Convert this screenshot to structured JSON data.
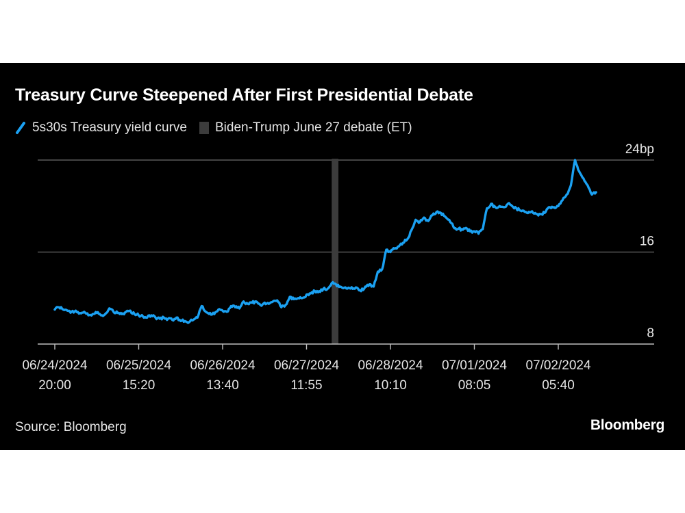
{
  "title": "Treasury Curve Steepened After First Presidential Debate",
  "source": "Source: Bloomberg",
  "brand": "Bloomberg",
  "colors": {
    "background": "#000000",
    "series": "#1ba1f2",
    "debate_band": "#3c3c3c",
    "grid": "#6e6e6e",
    "text": "#e6e6e6"
  },
  "chart_data": {
    "type": "line",
    "title": "Treasury Curve Steepened After First Presidential Debate",
    "xlabel": "",
    "ylabel": "",
    "ylim": [
      8,
      24
    ],
    "yticks": [
      {
        "value": 24,
        "label": "24bp"
      },
      {
        "value": 16,
        "label": "16"
      },
      {
        "value": 8,
        "label": "8"
      }
    ],
    "xlim": [
      -0.1,
      6.55
    ],
    "xticks": [
      {
        "x": 0,
        "label": [
          "06/24/2024",
          "20:00"
        ]
      },
      {
        "x": 1,
        "label": [
          "06/25/2024",
          "15:20"
        ]
      },
      {
        "x": 2,
        "label": [
          "06/26/2024",
          "13:40"
        ]
      },
      {
        "x": 3,
        "label": [
          "06/27/2024",
          "11:55"
        ]
      },
      {
        "x": 4,
        "label": [
          "06/28/2024",
          "10:10"
        ]
      },
      {
        "x": 5,
        "label": [
          "07/01/2024",
          "08:05"
        ]
      },
      {
        "x": 6,
        "label": [
          "07/02/2024",
          "05:40"
        ]
      }
    ],
    "legend": [
      {
        "label": "5s30s Treasury yield curve",
        "kind": "line"
      },
      {
        "label": "Biden-Trump June 27 debate (ET)",
        "kind": "band"
      }
    ],
    "debate_band": {
      "x_start": 3.3,
      "x_end": 3.38,
      "label": "Biden-Trump June 27 debate (ET)"
    },
    "series": [
      {
        "name": "5s30s Treasury yield curve",
        "x": [
          0,
          0.05,
          0.1,
          0.15,
          0.2,
          0.25,
          0.3,
          0.35,
          0.4,
          0.45,
          0.5,
          0.55,
          0.6,
          0.65,
          0.7,
          0.75,
          0.8,
          0.85,
          0.9,
          0.95,
          1,
          1.05,
          1.1,
          1.15,
          1.2,
          1.25,
          1.3,
          1.35,
          1.4,
          1.45,
          1.5,
          1.55,
          1.6,
          1.65,
          1.7,
          1.75,
          1.8,
          1.85,
          1.9,
          1.95,
          2,
          2.05,
          2.1,
          2.15,
          2.2,
          2.25,
          2.3,
          2.35,
          2.4,
          2.45,
          2.5,
          2.55,
          2.6,
          2.65,
          2.7,
          2.75,
          2.8,
          2.85,
          2.9,
          2.95,
          3,
          3.05,
          3.1,
          3.15,
          3.2,
          3.25,
          3.3,
          3.35,
          3.4,
          3.45,
          3.5,
          3.55,
          3.6,
          3.65,
          3.7,
          3.75,
          3.8,
          3.85,
          3.9,
          3.95,
          4,
          4.05,
          4.1,
          4.15,
          4.2,
          4.25,
          4.3,
          4.35,
          4.4,
          4.45,
          4.5,
          4.55,
          4.6,
          4.65,
          4.7,
          4.75,
          4.8,
          4.85,
          4.9,
          4.95,
          5,
          5.05,
          5.1,
          5.15,
          5.2,
          5.25,
          5.3,
          5.35,
          5.4,
          5.45,
          5.5,
          5.55,
          5.6,
          5.65,
          5.7,
          5.75,
          5.8,
          5.85,
          5.9,
          5.95,
          6,
          6.05,
          6.1,
          6.15,
          6.2,
          6.25,
          6.3,
          6.35,
          6.4,
          6.45
        ],
        "values": [
          11.0,
          11.2,
          11.0,
          10.9,
          10.8,
          10.9,
          10.7,
          10.8,
          10.5,
          10.6,
          10.7,
          10.5,
          10.6,
          11.1,
          10.8,
          10.7,
          10.6,
          10.8,
          10.9,
          10.6,
          10.5,
          10.4,
          10.3,
          10.5,
          10.3,
          10.2,
          10.3,
          10.2,
          10.1,
          10.3,
          10.0,
          10.0,
          9.9,
          10.1,
          10.3,
          11.3,
          10.8,
          10.7,
          10.6,
          11.0,
          10.9,
          10.8,
          11.3,
          11.2,
          11.1,
          11.7,
          11.5,
          11.6,
          11.7,
          11.4,
          11.6,
          11.5,
          11.7,
          11.8,
          11.2,
          11.4,
          12.1,
          11.9,
          12.0,
          12.0,
          12.3,
          12.4,
          12.6,
          12.6,
          12.8,
          12.8,
          13.3,
          13.2,
          13.0,
          12.9,
          12.9,
          12.8,
          12.9,
          12.6,
          13.0,
          13.2,
          13.0,
          14.3,
          14.5,
          16.2,
          16.0,
          16.3,
          16.5,
          16.8,
          17.1,
          17.9,
          18.8,
          18.6,
          19.0,
          18.7,
          19.2,
          19.5,
          19.4,
          19.1,
          18.8,
          18.2,
          18.0,
          18.0,
          18.1,
          17.8,
          17.8,
          17.6,
          18.0,
          19.8,
          20.2,
          19.9,
          20.0,
          19.9,
          20.2,
          20.0,
          19.8,
          19.6,
          19.5,
          19.5,
          19.4,
          19.3,
          19.3,
          19.5,
          19.9,
          19.9,
          20.0,
          20.5,
          21.0,
          21.8,
          24.0,
          23.0,
          22.4,
          21.8,
          21.0,
          21.2
        ]
      }
    ]
  }
}
